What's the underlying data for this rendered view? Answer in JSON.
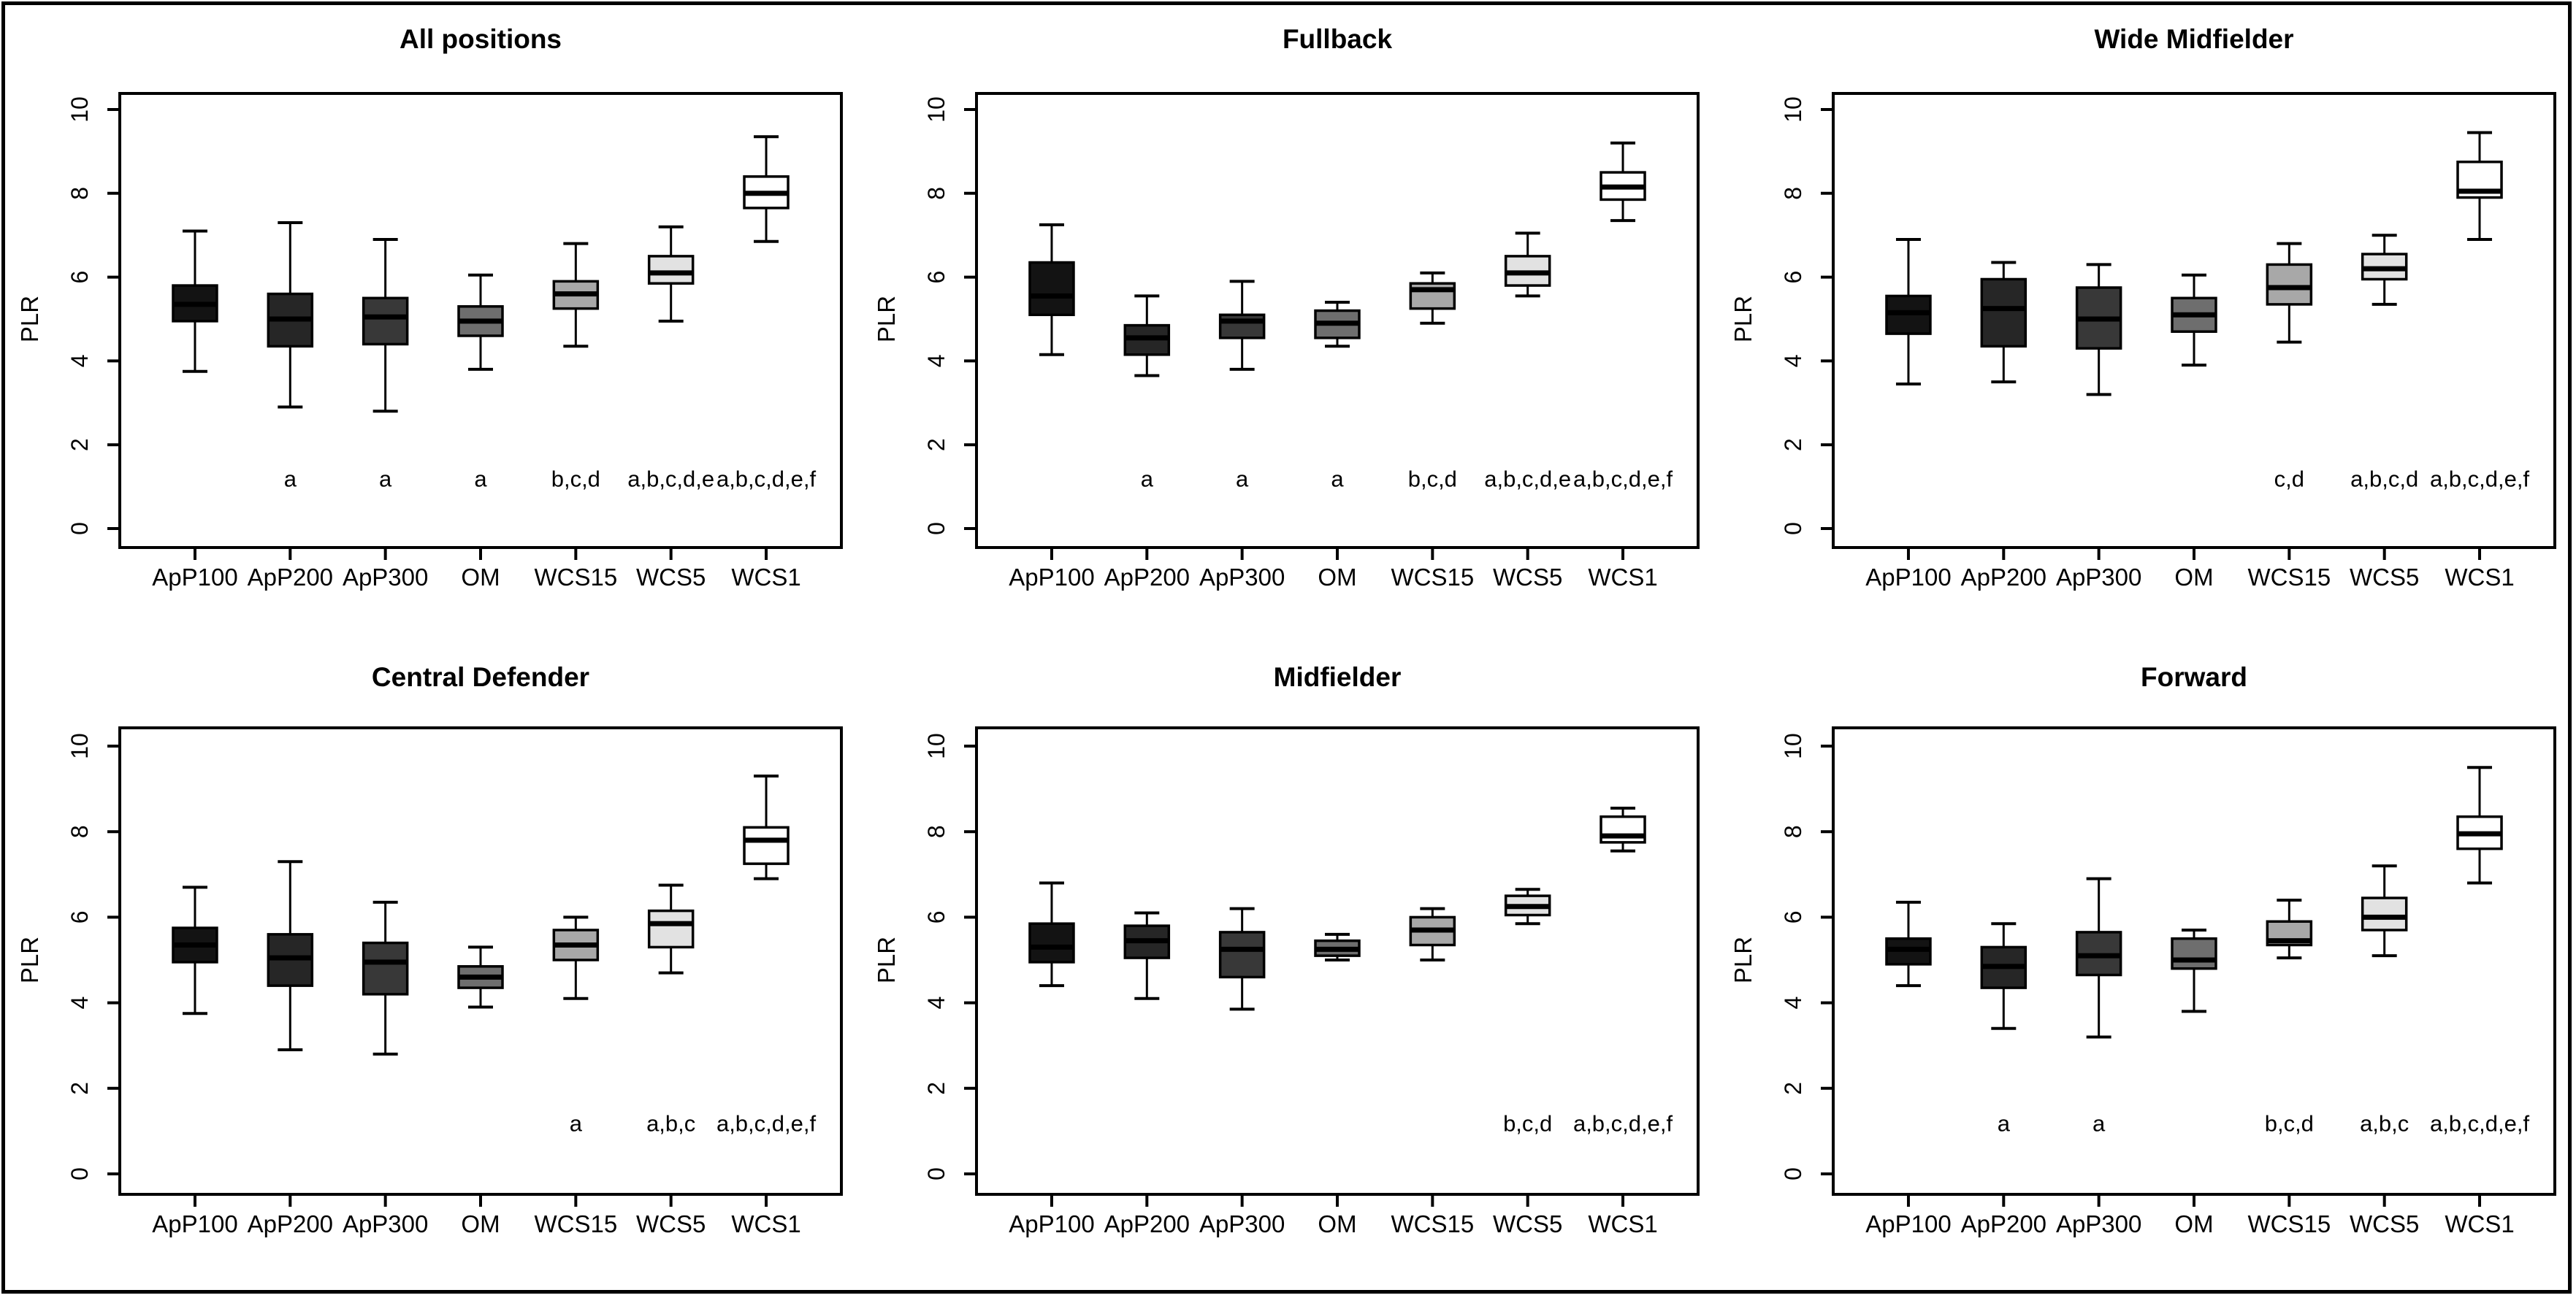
{
  "figure": {
    "background": "#ffffff",
    "border_color": "#000000",
    "ylabel": "PLR",
    "categories": [
      "ApP100",
      "ApP200",
      "ApP300",
      "OM",
      "WCS15",
      "WCS5",
      "WCS1"
    ],
    "box_colors": [
      "#131313",
      "#262626",
      "#383838",
      "#6e6e6e",
      "#a8a8a8",
      "#e2e2e2",
      "#ffffff"
    ],
    "yticks": [
      0,
      2,
      4,
      6,
      8,
      10
    ]
  },
  "chart_data": [
    {
      "type": "box",
      "title": "All positions",
      "xlabel": "",
      "ylabel": "PLR",
      "ylim": [
        0,
        10
      ],
      "categories": [
        "ApP100",
        "ApP200",
        "ApP300",
        "OM",
        "WCS15",
        "WCS5",
        "WCS1"
      ],
      "series": [
        {
          "name": "ApP100",
          "color": "#131313",
          "whislo": 3.75,
          "q1": 4.95,
          "med": 5.35,
          "q3": 5.8,
          "whishi": 7.1,
          "sig": ""
        },
        {
          "name": "ApP200",
          "color": "#262626",
          "whislo": 2.9,
          "q1": 4.35,
          "med": 5.0,
          "q3": 5.6,
          "whishi": 7.3,
          "sig": "a"
        },
        {
          "name": "ApP300",
          "color": "#383838",
          "whislo": 2.8,
          "q1": 4.4,
          "med": 5.05,
          "q3": 5.5,
          "whishi": 6.9,
          "sig": "a"
        },
        {
          "name": "OM",
          "color": "#6e6e6e",
          "whislo": 3.8,
          "q1": 4.6,
          "med": 4.95,
          "q3": 5.3,
          "whishi": 6.05,
          "sig": "a"
        },
        {
          "name": "WCS15",
          "color": "#a8a8a8",
          "whislo": 4.35,
          "q1": 5.25,
          "med": 5.6,
          "q3": 5.9,
          "whishi": 6.8,
          "sig": "b,c,d"
        },
        {
          "name": "WCS5",
          "color": "#e2e2e2",
          "whislo": 4.95,
          "q1": 5.85,
          "med": 6.1,
          "q3": 6.5,
          "whishi": 7.2,
          "sig": "a,b,c,d,e"
        },
        {
          "name": "WCS1",
          "color": "#ffffff",
          "whislo": 6.85,
          "q1": 7.65,
          "med": 8.0,
          "q3": 8.4,
          "whishi": 9.35,
          "sig": "a,b,c,d,e,f"
        }
      ]
    },
    {
      "type": "box",
      "title": "Fullback",
      "xlabel": "",
      "ylabel": "PLR",
      "ylim": [
        0,
        10
      ],
      "categories": [
        "ApP100",
        "ApP200",
        "ApP300",
        "OM",
        "WCS15",
        "WCS5",
        "WCS1"
      ],
      "series": [
        {
          "name": "ApP100",
          "color": "#131313",
          "whislo": 4.15,
          "q1": 5.1,
          "med": 5.55,
          "q3": 6.35,
          "whishi": 7.25,
          "sig": ""
        },
        {
          "name": "ApP200",
          "color": "#262626",
          "whislo": 3.65,
          "q1": 4.15,
          "med": 4.55,
          "q3": 4.85,
          "whishi": 5.55,
          "sig": "a"
        },
        {
          "name": "ApP300",
          "color": "#383838",
          "whislo": 3.8,
          "q1": 4.55,
          "med": 4.95,
          "q3": 5.1,
          "whishi": 5.9,
          "sig": "a"
        },
        {
          "name": "OM",
          "color": "#6e6e6e",
          "whislo": 4.35,
          "q1": 4.55,
          "med": 4.9,
          "q3": 5.2,
          "whishi": 5.4,
          "sig": "a"
        },
        {
          "name": "WCS15",
          "color": "#a8a8a8",
          "whislo": 4.9,
          "q1": 5.25,
          "med": 5.7,
          "q3": 5.85,
          "whishi": 6.1,
          "sig": "b,c,d"
        },
        {
          "name": "WCS5",
          "color": "#e2e2e2",
          "whislo": 5.55,
          "q1": 5.8,
          "med": 6.1,
          "q3": 6.5,
          "whishi": 7.05,
          "sig": "a,b,c,d,e"
        },
        {
          "name": "WCS1",
          "color": "#ffffff",
          "whislo": 7.35,
          "q1": 7.85,
          "med": 8.15,
          "q3": 8.5,
          "whishi": 9.2,
          "sig": "a,b,c,d,e,f"
        }
      ]
    },
    {
      "type": "box",
      "title": "Wide Midfielder",
      "xlabel": "",
      "ylabel": "PLR",
      "ylim": [
        0,
        10
      ],
      "categories": [
        "ApP100",
        "ApP200",
        "ApP300",
        "OM",
        "WCS15",
        "WCS5",
        "WCS1"
      ],
      "series": [
        {
          "name": "ApP100",
          "color": "#131313",
          "whislo": 3.45,
          "q1": 4.65,
          "med": 5.15,
          "q3": 5.55,
          "whishi": 6.9,
          "sig": ""
        },
        {
          "name": "ApP200",
          "color": "#262626",
          "whislo": 3.5,
          "q1": 4.35,
          "med": 5.25,
          "q3": 5.95,
          "whishi": 6.35,
          "sig": ""
        },
        {
          "name": "ApP300",
          "color": "#383838",
          "whislo": 3.2,
          "q1": 4.3,
          "med": 5.0,
          "q3": 5.75,
          "whishi": 6.3,
          "sig": ""
        },
        {
          "name": "OM",
          "color": "#6e6e6e",
          "whislo": 3.9,
          "q1": 4.7,
          "med": 5.1,
          "q3": 5.5,
          "whishi": 6.05,
          "sig": ""
        },
        {
          "name": "WCS15",
          "color": "#a8a8a8",
          "whislo": 4.45,
          "q1": 5.35,
          "med": 5.75,
          "q3": 6.3,
          "whishi": 6.8,
          "sig": "c,d"
        },
        {
          "name": "WCS5",
          "color": "#e2e2e2",
          "whislo": 5.35,
          "q1": 5.95,
          "med": 6.2,
          "q3": 6.55,
          "whishi": 7.0,
          "sig": "a,b,c,d"
        },
        {
          "name": "WCS1",
          "color": "#ffffff",
          "whislo": 6.9,
          "q1": 7.9,
          "med": 8.05,
          "q3": 8.75,
          "whishi": 9.45,
          "sig": "a,b,c,d,e,f"
        }
      ]
    },
    {
      "type": "box",
      "title": "Central Defender",
      "xlabel": "",
      "ylabel": "PLR",
      "ylim": [
        0,
        10
      ],
      "categories": [
        "ApP100",
        "ApP200",
        "ApP300",
        "OM",
        "WCS15",
        "WCS5",
        "WCS1"
      ],
      "series": [
        {
          "name": "ApP100",
          "color": "#131313",
          "whislo": 3.75,
          "q1": 4.95,
          "med": 5.35,
          "q3": 5.75,
          "whishi": 6.7,
          "sig": ""
        },
        {
          "name": "ApP200",
          "color": "#262626",
          "whislo": 2.9,
          "q1": 4.4,
          "med": 5.05,
          "q3": 5.6,
          "whishi": 7.3,
          "sig": ""
        },
        {
          "name": "ApP300",
          "color": "#383838",
          "whislo": 2.8,
          "q1": 4.2,
          "med": 4.95,
          "q3": 5.4,
          "whishi": 6.35,
          "sig": ""
        },
        {
          "name": "OM",
          "color": "#6e6e6e",
          "whislo": 3.9,
          "q1": 4.35,
          "med": 4.6,
          "q3": 4.85,
          "whishi": 5.3,
          "sig": ""
        },
        {
          "name": "WCS15",
          "color": "#a8a8a8",
          "whislo": 4.1,
          "q1": 5.0,
          "med": 5.35,
          "q3": 5.7,
          "whishi": 6.0,
          "sig": "a"
        },
        {
          "name": "WCS5",
          "color": "#e2e2e2",
          "whislo": 4.7,
          "q1": 5.3,
          "med": 5.85,
          "q3": 6.15,
          "whishi": 6.75,
          "sig": "a,b,c"
        },
        {
          "name": "WCS1",
          "color": "#ffffff",
          "whislo": 6.9,
          "q1": 7.25,
          "med": 7.8,
          "q3": 8.1,
          "whishi": 9.3,
          "sig": "a,b,c,d,e,f"
        }
      ]
    },
    {
      "type": "box",
      "title": "Midfielder",
      "xlabel": "",
      "ylabel": "PLR",
      "ylim": [
        0,
        10
      ],
      "categories": [
        "ApP100",
        "ApP200",
        "ApP300",
        "OM",
        "WCS15",
        "WCS5",
        "WCS1"
      ],
      "series": [
        {
          "name": "ApP100",
          "color": "#131313",
          "whislo": 4.4,
          "q1": 4.95,
          "med": 5.3,
          "q3": 5.85,
          "whishi": 6.8,
          "sig": ""
        },
        {
          "name": "ApP200",
          "color": "#262626",
          "whislo": 4.1,
          "q1": 5.05,
          "med": 5.45,
          "q3": 5.8,
          "whishi": 6.1,
          "sig": ""
        },
        {
          "name": "ApP300",
          "color": "#383838",
          "whislo": 3.85,
          "q1": 4.6,
          "med": 5.25,
          "q3": 5.65,
          "whishi": 6.2,
          "sig": ""
        },
        {
          "name": "OM",
          "color": "#6e6e6e",
          "whislo": 5.0,
          "q1": 5.1,
          "med": 5.25,
          "q3": 5.45,
          "whishi": 5.6,
          "sig": ""
        },
        {
          "name": "WCS15",
          "color": "#a8a8a8",
          "whislo": 5.0,
          "q1": 5.35,
          "med": 5.7,
          "q3": 6.0,
          "whishi": 6.2,
          "sig": ""
        },
        {
          "name": "WCS5",
          "color": "#e2e2e2",
          "whislo": 5.85,
          "q1": 6.05,
          "med": 6.25,
          "q3": 6.5,
          "whishi": 6.65,
          "sig": "b,c,d"
        },
        {
          "name": "WCS1",
          "color": "#ffffff",
          "whislo": 7.55,
          "q1": 7.75,
          "med": 7.9,
          "q3": 8.35,
          "whishi": 8.55,
          "sig": "a,b,c,d,e,f"
        }
      ]
    },
    {
      "type": "box",
      "title": "Forward",
      "xlabel": "",
      "ylabel": "PLR",
      "ylim": [
        0,
        10
      ],
      "categories": [
        "ApP100",
        "ApP200",
        "ApP300",
        "OM",
        "WCS15",
        "WCS5",
        "WCS1"
      ],
      "series": [
        {
          "name": "ApP100",
          "color": "#131313",
          "whislo": 4.4,
          "q1": 4.9,
          "med": 5.25,
          "q3": 5.5,
          "whishi": 6.35,
          "sig": ""
        },
        {
          "name": "ApP200",
          "color": "#262626",
          "whislo": 3.4,
          "q1": 4.35,
          "med": 4.85,
          "q3": 5.3,
          "whishi": 5.85,
          "sig": "a"
        },
        {
          "name": "ApP300",
          "color": "#383838",
          "whislo": 3.2,
          "q1": 4.65,
          "med": 5.1,
          "q3": 5.65,
          "whishi": 6.9,
          "sig": "a"
        },
        {
          "name": "OM",
          "color": "#6e6e6e",
          "whislo": 3.8,
          "q1": 4.8,
          "med": 5.0,
          "q3": 5.5,
          "whishi": 5.7,
          "sig": ""
        },
        {
          "name": "WCS15",
          "color": "#a8a8a8",
          "whislo": 5.05,
          "q1": 5.35,
          "med": 5.45,
          "q3": 5.9,
          "whishi": 6.4,
          "sig": "b,c,d"
        },
        {
          "name": "WCS5",
          "color": "#e2e2e2",
          "whislo": 5.1,
          "q1": 5.7,
          "med": 6.0,
          "q3": 6.45,
          "whishi": 7.2,
          "sig": "a,b,c"
        },
        {
          "name": "WCS1",
          "color": "#ffffff",
          "whislo": 6.8,
          "q1": 7.6,
          "med": 7.95,
          "q3": 8.35,
          "whishi": 9.5,
          "sig": "a,b,c,d,e,f"
        }
      ]
    }
  ]
}
